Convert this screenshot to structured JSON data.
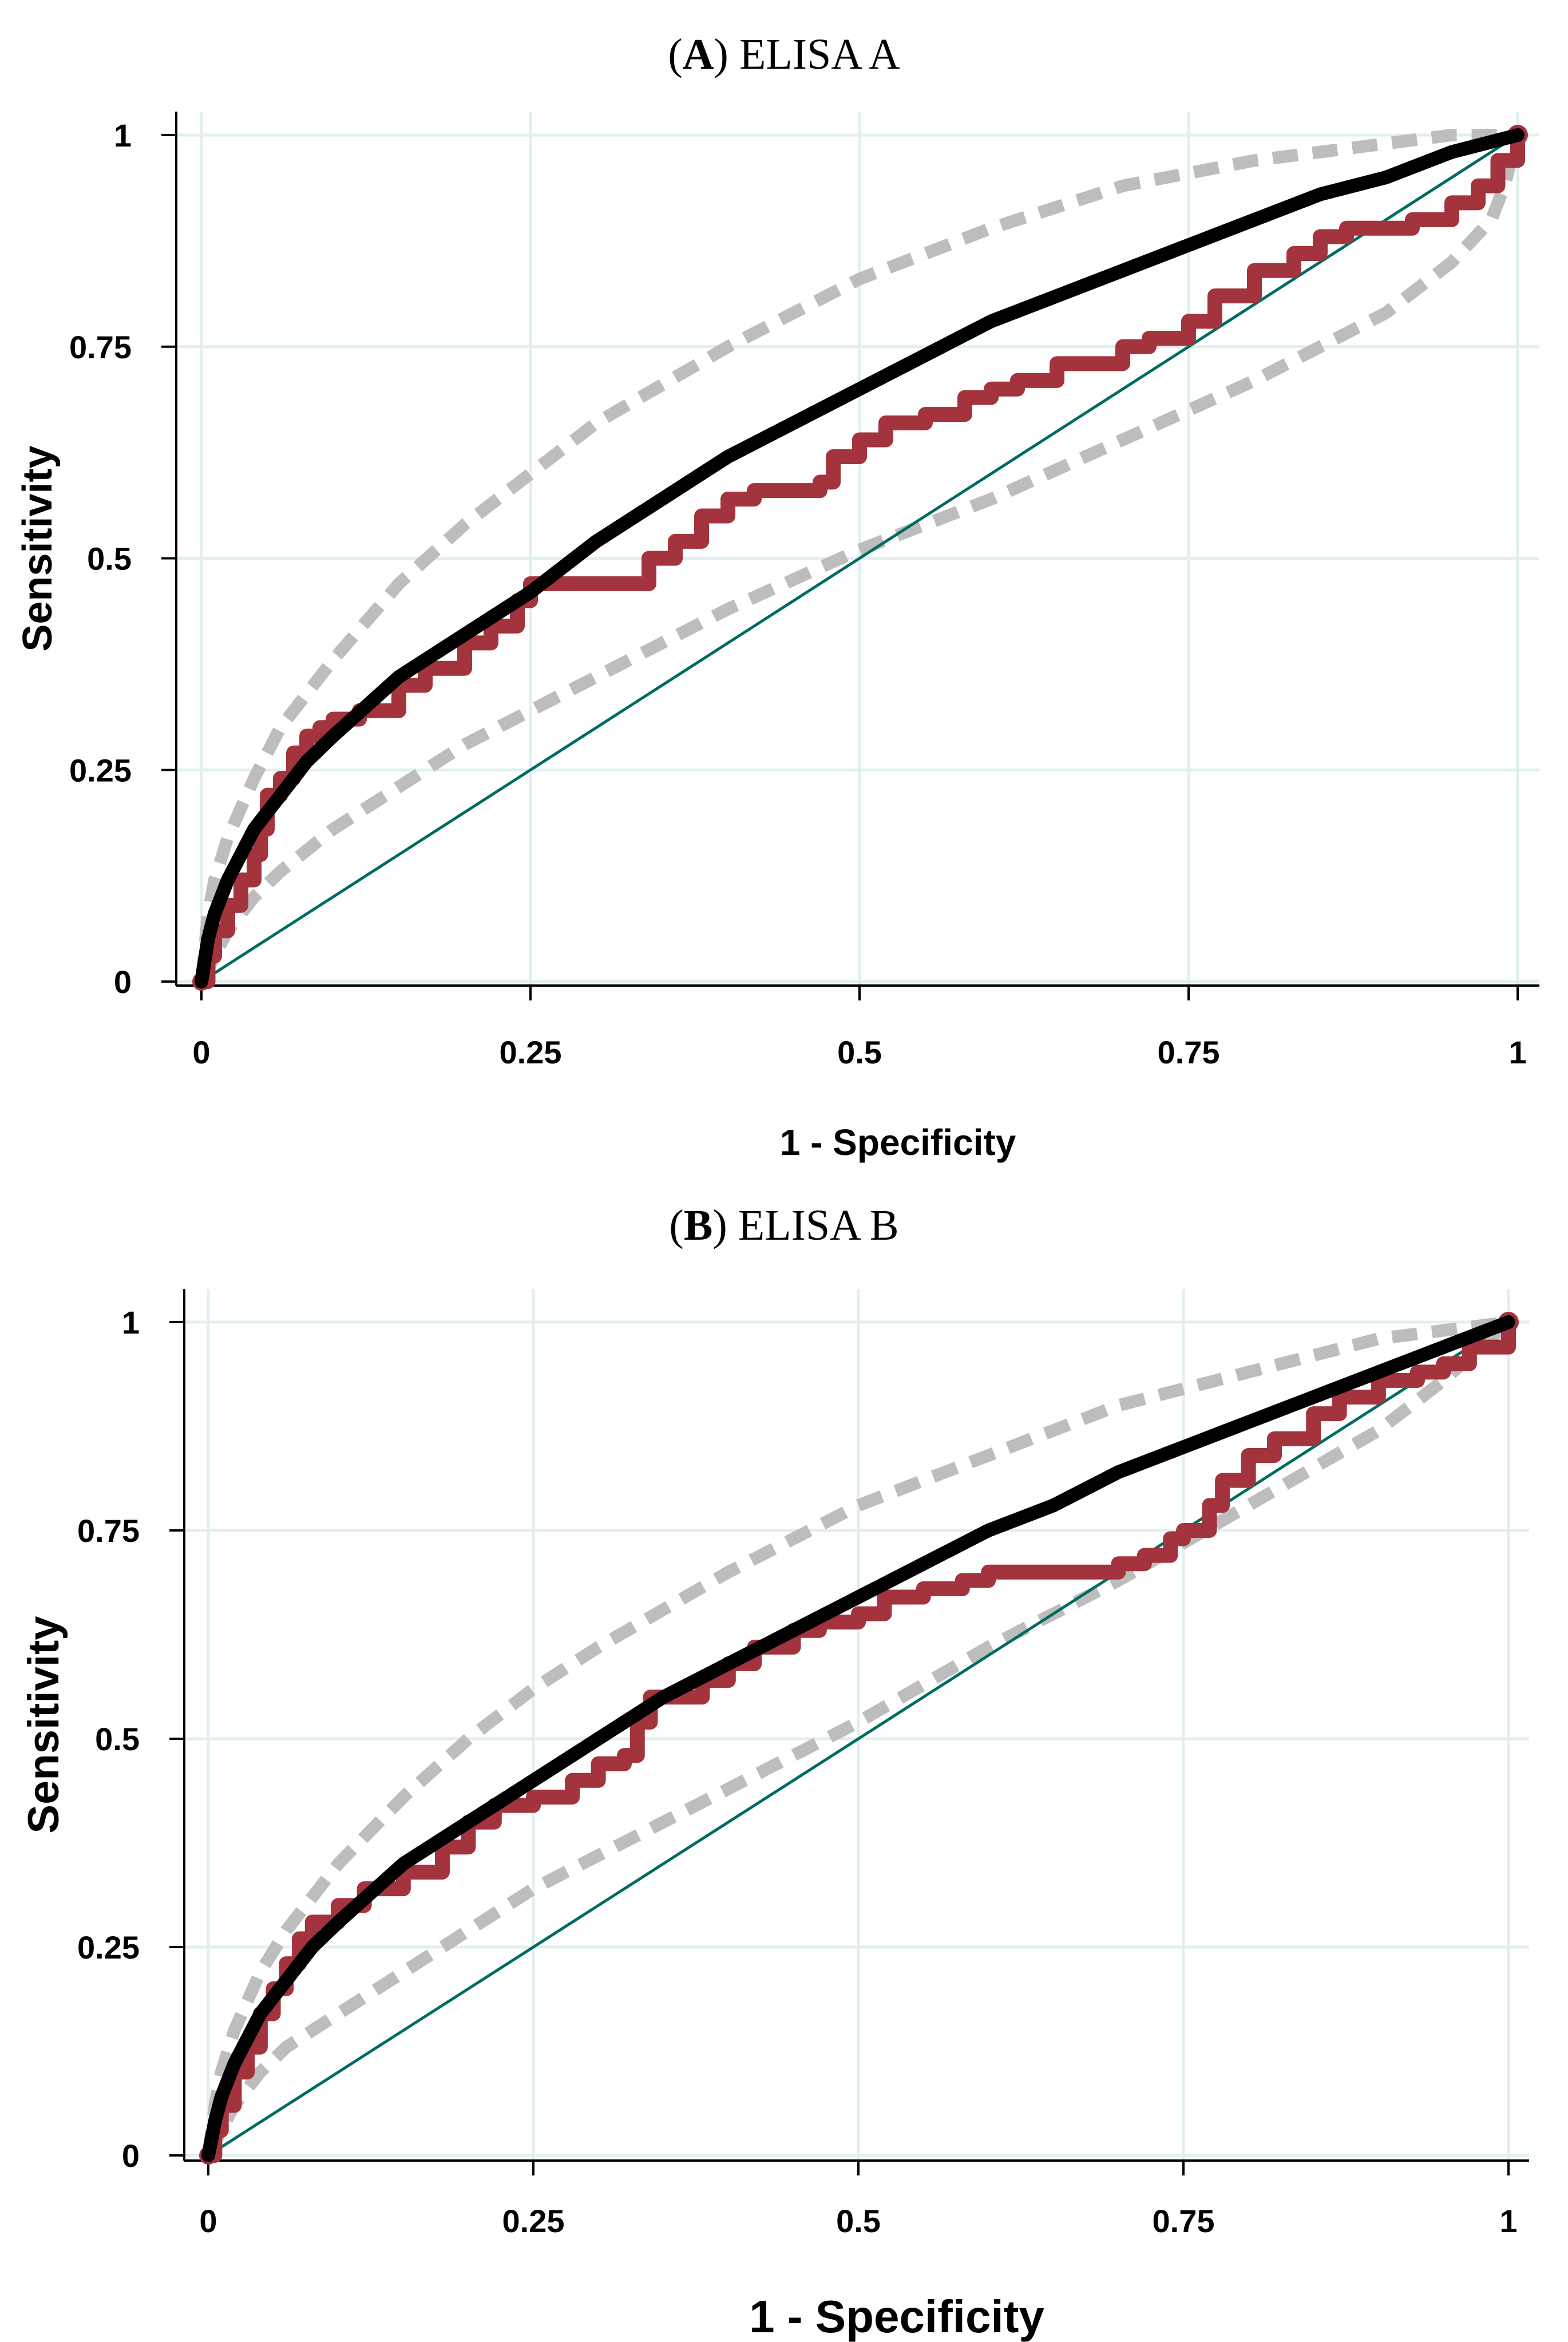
{
  "chart_data": [
    {
      "type": "line",
      "title_letter": "A",
      "title_text": "ELISA A",
      "xlabel": "1 - Specificity",
      "ylabel": "Sensitivity",
      "xlim": [
        0,
        1
      ],
      "ylim": [
        0,
        1
      ],
      "xticks": [
        "0",
        "0.25",
        "0.5",
        "0.75",
        "1"
      ],
      "yticks": [
        "0",
        "0.25",
        "0.5",
        "0.75",
        "1"
      ],
      "grid": true,
      "colors": {
        "empirical": "#a3333d",
        "fitted": "#000000",
        "ci": "#bdbdbd",
        "reference": "#006b60",
        "grid": "#e0f0ef"
      },
      "series": [
        {
          "role": "empirical",
          "x": [
            0,
            0.005,
            0.01,
            0.02,
            0.03,
            0.04,
            0.045,
            0.05,
            0.06,
            0.07,
            0.08,
            0.09,
            0.1,
            0.12,
            0.15,
            0.17,
            0.2,
            0.22,
            0.24,
            0.25,
            0.3,
            0.33,
            0.34,
            0.36,
            0.38,
            0.4,
            0.42,
            0.45,
            0.47,
            0.48,
            0.5,
            0.52,
            0.55,
            0.58,
            0.6,
            0.62,
            0.65,
            0.7,
            0.72,
            0.75,
            0.77,
            0.8,
            0.83,
            0.85,
            0.87,
            0.9,
            0.92,
            0.95,
            0.97,
            0.985,
            1
          ],
          "y": [
            0,
            0.03,
            0.06,
            0.09,
            0.12,
            0.15,
            0.18,
            0.22,
            0.24,
            0.27,
            0.29,
            0.3,
            0.31,
            0.32,
            0.35,
            0.37,
            0.4,
            0.42,
            0.45,
            0.47,
            0.47,
            0.47,
            0.5,
            0.52,
            0.55,
            0.57,
            0.58,
            0.58,
            0.59,
            0.62,
            0.64,
            0.66,
            0.67,
            0.69,
            0.7,
            0.71,
            0.73,
            0.75,
            0.76,
            0.78,
            0.81,
            0.84,
            0.86,
            0.88,
            0.89,
            0.89,
            0.9,
            0.92,
            0.94,
            0.97,
            1
          ]
        },
        {
          "role": "fitted",
          "x": [
            0,
            0.005,
            0.01,
            0.02,
            0.04,
            0.06,
            0.08,
            0.1,
            0.15,
            0.2,
            0.25,
            0.3,
            0.35,
            0.4,
            0.45,
            0.5,
            0.55,
            0.6,
            0.65,
            0.7,
            0.75,
            0.8,
            0.85,
            0.9,
            0.95,
            1
          ],
          "y": [
            0,
            0.05,
            0.08,
            0.12,
            0.18,
            0.22,
            0.26,
            0.29,
            0.36,
            0.41,
            0.46,
            0.52,
            0.57,
            0.62,
            0.66,
            0.7,
            0.74,
            0.78,
            0.81,
            0.84,
            0.87,
            0.9,
            0.93,
            0.95,
            0.98,
            1
          ]
        },
        {
          "role": "ci-upper",
          "x": [
            0,
            0.005,
            0.01,
            0.02,
            0.04,
            0.06,
            0.08,
            0.1,
            0.15,
            0.2,
            0.25,
            0.3,
            0.4,
            0.5,
            0.6,
            0.7,
            0.8,
            0.9,
            0.95,
            1
          ],
          "y": [
            0,
            0.08,
            0.12,
            0.17,
            0.24,
            0.3,
            0.34,
            0.38,
            0.47,
            0.54,
            0.6,
            0.66,
            0.75,
            0.83,
            0.89,
            0.94,
            0.97,
            0.99,
            1.0,
            1
          ]
        },
        {
          "role": "ci-lower",
          "x": [
            0,
            0.01,
            0.02,
            0.04,
            0.06,
            0.1,
            0.15,
            0.2,
            0.25,
            0.3,
            0.4,
            0.5,
            0.6,
            0.7,
            0.8,
            0.9,
            0.95,
            0.98,
            0.99,
            1
          ],
          "y": [
            0,
            0.03,
            0.06,
            0.1,
            0.13,
            0.18,
            0.23,
            0.28,
            0.32,
            0.36,
            0.44,
            0.51,
            0.57,
            0.64,
            0.71,
            0.79,
            0.85,
            0.9,
            0.94,
            1
          ]
        },
        {
          "role": "reference",
          "x": [
            0,
            1
          ],
          "y": [
            0,
            1
          ]
        }
      ]
    },
    {
      "type": "line",
      "title_letter": "B",
      "title_text": "ELISA B",
      "xlabel": "1 - Specificity",
      "ylabel": "Sensitivity",
      "xlim": [
        0,
        1
      ],
      "ylim": [
        0,
        1
      ],
      "xticks": [
        "0",
        "0.25",
        "0.5",
        "0.75",
        "1"
      ],
      "yticks": [
        "0",
        "0.25",
        "0.5",
        "0.75",
        "1"
      ],
      "grid": true,
      "colors": {
        "empirical": "#a3333d",
        "fitted": "#000000",
        "ci": "#bdbdbd",
        "reference": "#006b60",
        "grid": "#e0f0ef"
      },
      "series": [
        {
          "role": "empirical",
          "x": [
            0,
            0.005,
            0.01,
            0.02,
            0.03,
            0.04,
            0.05,
            0.06,
            0.07,
            0.08,
            0.1,
            0.12,
            0.15,
            0.18,
            0.2,
            0.22,
            0.25,
            0.28,
            0.3,
            0.32,
            0.33,
            0.34,
            0.36,
            0.38,
            0.4,
            0.42,
            0.45,
            0.47,
            0.5,
            0.52,
            0.55,
            0.58,
            0.6,
            0.65,
            0.7,
            0.72,
            0.74,
            0.75,
            0.77,
            0.78,
            0.8,
            0.82,
            0.85,
            0.87,
            0.9,
            0.93,
            0.95,
            0.97,
            1
          ],
          "y": [
            0,
            0.03,
            0.06,
            0.1,
            0.13,
            0.17,
            0.2,
            0.23,
            0.26,
            0.28,
            0.3,
            0.32,
            0.34,
            0.37,
            0.4,
            0.42,
            0.43,
            0.45,
            0.47,
            0.48,
            0.52,
            0.55,
            0.55,
            0.57,
            0.59,
            0.61,
            0.63,
            0.64,
            0.65,
            0.67,
            0.68,
            0.69,
            0.7,
            0.7,
            0.71,
            0.72,
            0.74,
            0.75,
            0.78,
            0.81,
            0.84,
            0.86,
            0.89,
            0.91,
            0.93,
            0.94,
            0.95,
            0.97,
            1
          ]
        },
        {
          "role": "fitted",
          "x": [
            0,
            0.005,
            0.01,
            0.02,
            0.04,
            0.06,
            0.08,
            0.1,
            0.15,
            0.2,
            0.25,
            0.3,
            0.35,
            0.4,
            0.45,
            0.5,
            0.55,
            0.6,
            0.65,
            0.7,
            0.75,
            0.8,
            0.85,
            0.9,
            0.95,
            1
          ],
          "y": [
            0,
            0.04,
            0.07,
            0.11,
            0.17,
            0.21,
            0.25,
            0.28,
            0.35,
            0.4,
            0.45,
            0.5,
            0.55,
            0.59,
            0.63,
            0.67,
            0.71,
            0.75,
            0.78,
            0.82,
            0.85,
            0.88,
            0.91,
            0.94,
            0.97,
            1
          ]
        },
        {
          "role": "ci-upper",
          "x": [
            0,
            0.005,
            0.01,
            0.02,
            0.04,
            0.06,
            0.08,
            0.1,
            0.15,
            0.2,
            0.25,
            0.3,
            0.4,
            0.5,
            0.6,
            0.7,
            0.8,
            0.9,
            0.95,
            1
          ],
          "y": [
            0,
            0.06,
            0.1,
            0.15,
            0.22,
            0.27,
            0.31,
            0.35,
            0.43,
            0.5,
            0.56,
            0.61,
            0.7,
            0.78,
            0.84,
            0.9,
            0.94,
            0.98,
            0.99,
            1
          ]
        },
        {
          "role": "ci-lower",
          "x": [
            0,
            0.01,
            0.02,
            0.04,
            0.06,
            0.1,
            0.15,
            0.2,
            0.25,
            0.3,
            0.4,
            0.5,
            0.6,
            0.7,
            0.8,
            0.9,
            0.95,
            1
          ],
          "y": [
            0,
            0.03,
            0.06,
            0.1,
            0.13,
            0.17,
            0.22,
            0.27,
            0.32,
            0.36,
            0.44,
            0.52,
            0.61,
            0.69,
            0.78,
            0.87,
            0.93,
            1
          ]
        },
        {
          "role": "reference",
          "x": [
            0,
            1
          ],
          "y": [
            0,
            1
          ]
        }
      ]
    }
  ]
}
